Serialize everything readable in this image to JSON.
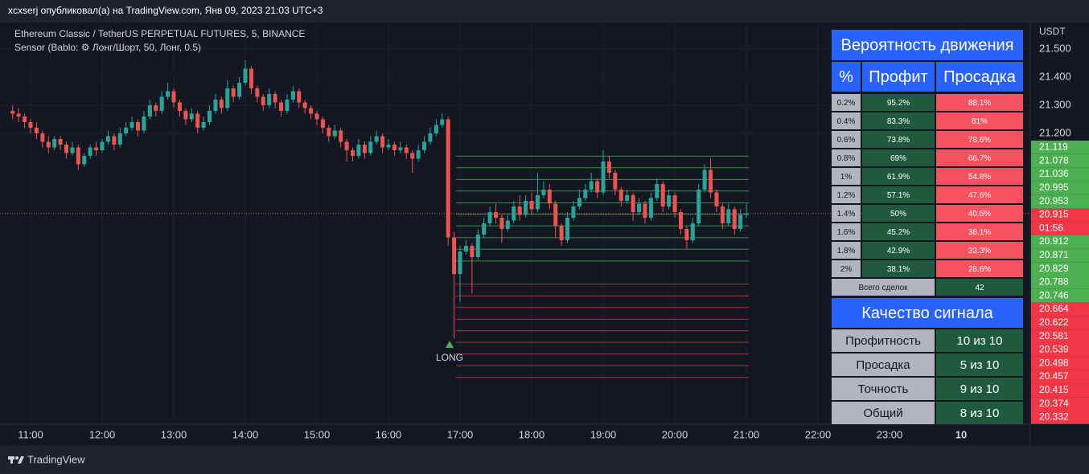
{
  "header": {
    "publisher": "xcxserj опубликовал(а) на TradingView.com, Янв 09, 2023 21:03 UTC+3",
    "symbol": "Ethereum Classic / TetherUS PERPETUAL FUTURES, 5, BINANCE",
    "indicator": "Sensor (Bablo: ⚙ Лонг/Шорт, 50, Лонг, 0.5)"
  },
  "chart": {
    "type": "candlestick",
    "currency": "USDT",
    "yticks": [
      {
        "value": 21.5,
        "label": "21.500"
      },
      {
        "value": 21.4,
        "label": "21.400"
      },
      {
        "value": 21.3,
        "label": "21.300"
      },
      {
        "value": 21.2,
        "label": "21.200"
      }
    ],
    "time_labels": [
      "11:00",
      "12:00",
      "13:00",
      "14:00",
      "15:00",
      "16:00",
      "17:00",
      "18:00",
      "19:00",
      "20:00",
      "21:00",
      "22:00",
      "23:00",
      "10"
    ],
    "current_price": 20.915,
    "countdown": "01:56",
    "signal": "LONG",
    "levels": {
      "profit": [
        21.119,
        21.078,
        21.036,
        20.995,
        20.953,
        20.912,
        20.871,
        20.829,
        20.788,
        20.746
      ],
      "loss": [
        20.664,
        20.622,
        20.581,
        20.539,
        20.498,
        20.457,
        20.415,
        20.374,
        20.332
      ]
    },
    "candles": [
      [
        21.28,
        21.3,
        21.25,
        21.27
      ],
      [
        21.27,
        21.29,
        21.24,
        21.26
      ],
      [
        21.26,
        21.27,
        21.22,
        21.24
      ],
      [
        21.24,
        21.25,
        21.2,
        21.22
      ],
      [
        21.22,
        21.24,
        21.18,
        21.2
      ],
      [
        21.2,
        21.21,
        21.15,
        21.17
      ],
      [
        21.17,
        21.19,
        21.13,
        21.15
      ],
      [
        21.15,
        21.19,
        21.14,
        21.18
      ],
      [
        21.18,
        21.19,
        21.14,
        21.16
      ],
      [
        21.16,
        21.17,
        21.11,
        21.13
      ],
      [
        21.13,
        21.17,
        21.12,
        21.15
      ],
      [
        21.15,
        21.16,
        21.07,
        21.09
      ],
      [
        21.09,
        21.13,
        21.08,
        21.12
      ],
      [
        21.12,
        21.16,
        21.11,
        21.15
      ],
      [
        21.15,
        21.17,
        21.12,
        21.14
      ],
      [
        21.14,
        21.18,
        21.13,
        21.17
      ],
      [
        21.17,
        21.21,
        21.16,
        21.19
      ],
      [
        21.19,
        21.2,
        21.14,
        21.16
      ],
      [
        21.16,
        21.22,
        21.15,
        21.2
      ],
      [
        21.2,
        21.24,
        21.19,
        21.22
      ],
      [
        21.22,
        21.26,
        21.21,
        21.24
      ],
      [
        21.24,
        21.25,
        21.19,
        21.21
      ],
      [
        21.21,
        21.28,
        21.2,
        21.26
      ],
      [
        21.26,
        21.32,
        21.25,
        21.3
      ],
      [
        21.3,
        21.31,
        21.26,
        21.28
      ],
      [
        21.28,
        21.35,
        21.27,
        21.33
      ],
      [
        21.33,
        21.38,
        21.32,
        21.35
      ],
      [
        21.35,
        21.36,
        21.29,
        21.31
      ],
      [
        21.31,
        21.32,
        21.26,
        21.28
      ],
      [
        21.28,
        21.29,
        21.23,
        21.25
      ],
      [
        21.25,
        21.29,
        21.24,
        21.27
      ],
      [
        21.27,
        21.28,
        21.2,
        21.22
      ],
      [
        21.22,
        21.26,
        21.21,
        21.24
      ],
      [
        21.24,
        21.3,
        21.23,
        21.28
      ],
      [
        21.28,
        21.34,
        21.27,
        21.32
      ],
      [
        21.32,
        21.33,
        21.27,
        21.29
      ],
      [
        21.29,
        21.39,
        21.28,
        21.36
      ],
      [
        21.36,
        21.37,
        21.31,
        21.33
      ],
      [
        21.33,
        21.4,
        21.32,
        21.38
      ],
      [
        21.38,
        21.46,
        21.37,
        21.43
      ],
      [
        21.43,
        21.44,
        21.34,
        21.36
      ],
      [
        21.36,
        21.37,
        21.31,
        21.33
      ],
      [
        21.33,
        21.34,
        21.28,
        21.3
      ],
      [
        21.3,
        21.36,
        21.29,
        21.34
      ],
      [
        21.34,
        21.35,
        21.29,
        21.31
      ],
      [
        21.31,
        21.32,
        21.26,
        21.28
      ],
      [
        21.28,
        21.34,
        21.27,
        21.32
      ],
      [
        21.32,
        21.37,
        21.31,
        21.35
      ],
      [
        21.35,
        21.36,
        21.29,
        21.31
      ],
      [
        21.31,
        21.32,
        21.27,
        21.29
      ],
      [
        21.29,
        21.3,
        21.25,
        21.27
      ],
      [
        21.27,
        21.28,
        21.23,
        21.25
      ],
      [
        21.25,
        21.26,
        21.2,
        21.22
      ],
      [
        21.22,
        21.23,
        21.17,
        21.19
      ],
      [
        21.19,
        21.23,
        21.18,
        21.21
      ],
      [
        21.21,
        21.22,
        21.15,
        21.17
      ],
      [
        21.17,
        21.18,
        21.1,
        21.14
      ],
      [
        21.14,
        21.15,
        21.1,
        21.12
      ],
      [
        21.12,
        21.18,
        21.11,
        21.16
      ],
      [
        21.16,
        21.17,
        21.11,
        21.13
      ],
      [
        21.13,
        21.19,
        21.12,
        21.17
      ],
      [
        21.17,
        21.21,
        21.16,
        21.19
      ],
      [
        21.19,
        21.2,
        21.13,
        21.15
      ],
      [
        21.15,
        21.18,
        21.14,
        21.16
      ],
      [
        21.16,
        21.17,
        21.12,
        21.14
      ],
      [
        21.14,
        21.17,
        21.13,
        21.15
      ],
      [
        21.15,
        21.16,
        21.11,
        21.13
      ],
      [
        21.13,
        21.14,
        21.06,
        21.11
      ],
      [
        21.11,
        21.16,
        21.1,
        21.14
      ],
      [
        21.14,
        21.19,
        21.13,
        21.17
      ],
      [
        21.17,
        21.22,
        21.16,
        21.2
      ],
      [
        21.2,
        21.25,
        21.19,
        21.23
      ],
      [
        21.23,
        21.27,
        21.22,
        21.25
      ],
      [
        21.25,
        21.26,
        20.8,
        20.83
      ],
      [
        20.83,
        20.85,
        20.47,
        20.7
      ],
      [
        20.7,
        20.8,
        20.6,
        20.78
      ],
      [
        20.78,
        20.82,
        20.77,
        20.8
      ],
      [
        20.8,
        20.81,
        20.63,
        20.76
      ],
      [
        20.76,
        20.86,
        20.75,
        20.84
      ],
      [
        20.84,
        20.9,
        20.83,
        20.88
      ],
      [
        20.88,
        20.94,
        20.87,
        20.92
      ],
      [
        20.92,
        20.95,
        20.88,
        20.9
      ],
      [
        20.9,
        20.91,
        20.81,
        20.86
      ],
      [
        20.86,
        20.91,
        20.85,
        20.89
      ],
      [
        20.89,
        20.96,
        20.88,
        20.94
      ],
      [
        20.94,
        20.98,
        20.89,
        20.91
      ],
      [
        20.91,
        20.98,
        20.9,
        20.96
      ],
      [
        20.96,
        20.99,
        20.91,
        20.93
      ],
      [
        20.93,
        21.06,
        20.92,
        20.98
      ],
      [
        20.98,
        21.03,
        20.97,
        21.0
      ],
      [
        21.0,
        21.02,
        20.93,
        20.95
      ],
      [
        20.95,
        20.96,
        20.83,
        20.87
      ],
      [
        20.87,
        20.88,
        20.8,
        20.82
      ],
      [
        20.82,
        20.92,
        20.81,
        20.9
      ],
      [
        20.9,
        20.96,
        20.89,
        20.94
      ],
      [
        20.94,
        21.0,
        20.93,
        20.97
      ],
      [
        20.97,
        21.02,
        20.96,
        21.0
      ],
      [
        21.0,
        21.06,
        20.99,
        21.03
      ],
      [
        21.03,
        21.04,
        20.97,
        20.99
      ],
      [
        20.99,
        21.14,
        20.98,
        21.1
      ],
      [
        21.1,
        21.12,
        21.04,
        21.06
      ],
      [
        21.06,
        21.07,
        20.98,
        21.0
      ],
      [
        21.0,
        21.01,
        20.94,
        20.96
      ],
      [
        20.96,
        21.0,
        20.95,
        20.98
      ],
      [
        20.98,
        20.99,
        20.89,
        20.92
      ],
      [
        20.92,
        20.97,
        20.91,
        20.95
      ],
      [
        20.95,
        20.96,
        20.88,
        20.9
      ],
      [
        20.9,
        20.99,
        20.89,
        20.97
      ],
      [
        20.97,
        21.04,
        20.96,
        21.02
      ],
      [
        21.02,
        21.03,
        20.92,
        20.94
      ],
      [
        20.94,
        21.0,
        20.93,
        20.98
      ],
      [
        20.98,
        20.99,
        20.9,
        20.92
      ],
      [
        20.92,
        20.93,
        20.84,
        20.86
      ],
      [
        20.86,
        20.87,
        20.79,
        20.82
      ],
      [
        20.82,
        20.9,
        20.81,
        20.88
      ],
      [
        20.88,
        21.02,
        20.87,
        21.0
      ],
      [
        21.0,
        21.09,
        20.99,
        21.07
      ],
      [
        21.07,
        21.11,
        20.97,
        20.99
      ],
      [
        20.99,
        21.0,
        20.92,
        20.94
      ],
      [
        20.94,
        20.95,
        20.86,
        20.88
      ],
      [
        20.88,
        20.95,
        20.87,
        20.93
      ],
      [
        20.93,
        20.94,
        20.84,
        20.86
      ],
      [
        20.86,
        20.93,
        20.85,
        20.91
      ],
      [
        20.91,
        20.95,
        20.9,
        20.915
      ]
    ]
  },
  "table": {
    "title": "Вероятность движения",
    "columns": [
      "%",
      "Профит",
      "Просадка"
    ],
    "rows": [
      [
        "0.2%",
        "95.2%",
        "88.1%"
      ],
      [
        "0.4%",
        "83.3%",
        "81%"
      ],
      [
        "0.6%",
        "73.8%",
        "78.6%"
      ],
      [
        "0.8%",
        "69%",
        "66.7%"
      ],
      [
        "1%",
        "61.9%",
        "54.8%"
      ],
      [
        "1.2%",
        "57.1%",
        "47.6%"
      ],
      [
        "1.4%",
        "50%",
        "40.5%"
      ],
      [
        "1.6%",
        "45.2%",
        "38.1%"
      ],
      [
        "1.8%",
        "42.9%",
        "33.3%"
      ],
      [
        "2%",
        "38.1%",
        "28.6%"
      ]
    ],
    "total": [
      "Всего сделок",
      "42"
    ]
  },
  "quality": {
    "title": "Качество сигнала",
    "rows": [
      [
        "Профитность",
        "10 из 10"
      ],
      [
        "Просадка",
        "5 из 10"
      ],
      [
        "Точность",
        "9 из 10"
      ],
      [
        "Общий",
        "8 из 10"
      ]
    ]
  },
  "footer": "TradingView"
}
